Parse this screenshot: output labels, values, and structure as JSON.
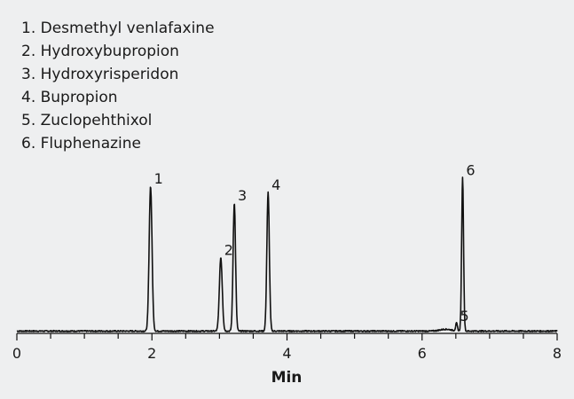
{
  "chart_data": {
    "type": "line",
    "title": "",
    "xlabel": "Min",
    "ylabel": "",
    "xlim": [
      0,
      8
    ],
    "ylim": [
      0,
      1
    ],
    "x_major_ticks": [
      0,
      2,
      4,
      6,
      8
    ],
    "x_minor_step": 0.5,
    "grid": false,
    "legend": {
      "position": "top-left",
      "entries": [
        "1. Desmethyl venlafaxine",
        "2. Hydroxybupropion",
        "3. Hydroxyrisperidon",
        "4. Bupropion",
        "5. Zuclopehthixol",
        "6. Fluphenazine"
      ]
    },
    "series": [
      {
        "color": "#111111",
        "baseline": 0.015,
        "peaks": [
          {
            "label": "1",
            "x": 1.98,
            "height": 0.945,
            "width": 0.03
          },
          {
            "label": "2",
            "x": 3.02,
            "height": 0.48,
            "width": 0.03
          },
          {
            "label": "3",
            "x": 3.22,
            "height": 0.835,
            "width": 0.026
          },
          {
            "label": "4",
            "x": 3.72,
            "height": 0.905,
            "width": 0.026
          },
          {
            "label": "5",
            "x": 6.51,
            "height": 0.05,
            "width": 0.018
          },
          {
            "label": "6",
            "x": 6.6,
            "height": 1.0,
            "width": 0.02
          }
        ]
      }
    ]
  }
}
